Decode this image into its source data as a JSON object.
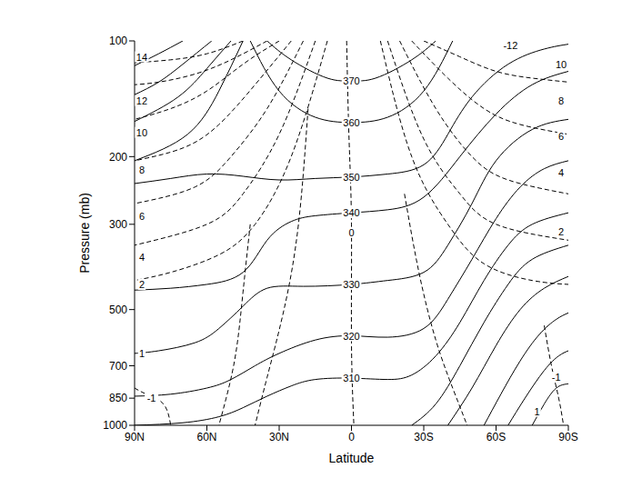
{
  "chart_data": {
    "type": "contour",
    "color": "#000000",
    "xlabel": "Latitude",
    "ylabel": "Pressure (mb)",
    "log": "y",
    "xlim": [
      90,
      -90
    ],
    "xticks": [
      {
        "value": 90,
        "label": "90N"
      },
      {
        "value": 60,
        "label": "60N"
      },
      {
        "value": 30,
        "label": "30N"
      },
      0,
      {
        "value": -30,
        "label": "30S"
      },
      {
        "value": -60,
        "label": "60S"
      },
      {
        "value": -90,
        "label": "90S"
      }
    ],
    "ylim": [
      1000,
      100
    ],
    "yticks": [
      100,
      200,
      300,
      500,
      700,
      850,
      1000
    ],
    "series": [
      {
        "line_style": "solid",
        "x": [
          35,
          25,
          10,
          0,
          -10,
          -25,
          -35
        ],
        "values": [
          100,
          112,
          125,
          127,
          125,
          112,
          100
        ]
      },
      {
        "line_style": "solid",
        "x": [
          42,
          30,
          15,
          0,
          -15,
          -30,
          -42
        ],
        "values": [
          100,
          135,
          158,
          163,
          158,
          135,
          100
        ]
      },
      {
        "line_style": "solid",
        "x": [
          90,
          75,
          60,
          45,
          30,
          15,
          0,
          -15,
          -30,
          -40,
          -50,
          -65,
          -80,
          -90
        ],
        "values": [
          235,
          228,
          222,
          225,
          230,
          228,
          226,
          222,
          210,
          175,
          140,
          115,
          105,
          102
        ]
      },
      {
        "line_style": "solid",
        "x": [
          90,
          75,
          60,
          45,
          35,
          25,
          15,
          0,
          -15,
          -30,
          -45,
          -60,
          -75,
          -90
        ],
        "values": [
          445,
          440,
          430,
          400,
          330,
          295,
          285,
          280,
          275,
          255,
          200,
          155,
          130,
          120
        ]
      },
      {
        "line_style": "solid",
        "x": [
          90,
          80,
          65,
          55,
          45,
          35,
          20,
          0,
          -15,
          -30,
          -40,
          -50,
          -60,
          -75,
          -90
        ],
        "values": [
          650,
          640,
          610,
          560,
          490,
          440,
          435,
          430,
          420,
          400,
          340,
          265,
          205,
          170,
          160
        ]
      },
      {
        "line_style": "solid",
        "x": [
          90,
          75,
          60,
          50,
          40,
          30,
          15,
          0,
          -15,
          -30,
          -40,
          -50,
          -60,
          -70,
          -80,
          -90
        ],
        "values": [
          840,
          830,
          800,
          760,
          700,
          650,
          600,
          585,
          590,
          560,
          470,
          370,
          290,
          240,
          215,
          205
        ]
      },
      {
        "line_style": "solid",
        "x": [
          90,
          70,
          55,
          45,
          35,
          25,
          15,
          0,
          -15,
          -25,
          -35,
          -45,
          -55,
          -65,
          -75,
          -90
        ],
        "values": [
          1000,
          985,
          950,
          900,
          840,
          790,
          760,
          754,
          760,
          740,
          660,
          540,
          420,
          340,
          300,
          280
        ]
      },
      {
        "line_style": "solid",
        "x": [
          -25,
          -35,
          -45,
          -55,
          -65,
          -75,
          -90
        ],
        "values": [
          1000,
          880,
          700,
          540,
          430,
          370,
          340
        ]
      },
      {
        "line_style": "solid",
        "x": [
          -40,
          -50,
          -60,
          -70,
          -80,
          -90
        ],
        "values": [
          1000,
          800,
          620,
          500,
          440,
          410
        ]
      },
      {
        "line_style": "solid",
        "x": [
          -55,
          -62,
          -70,
          -78,
          -85,
          -90
        ],
        "values": [
          1000,
          830,
          680,
          580,
          530,
          510
        ]
      },
      {
        "line_style": "solid",
        "x": [
          -65,
          -72,
          -80,
          -86,
          -90
        ],
        "values": [
          1000,
          850,
          720,
          660,
          640
        ]
      },
      {
        "line_style": "solid",
        "x": [
          -75,
          -80,
          -85,
          -90
        ],
        "values": [
          1000,
          880,
          800,
          780
        ]
      },
      {
        "line_style": "solid",
        "x": [
          70,
          80,
          90
        ],
        "values": [
          100,
          108,
          116
        ]
      },
      {
        "line_style": "solid",
        "x": [
          58,
          70,
          80,
          90
        ],
        "values": [
          100,
          115,
          128,
          138
        ]
      },
      {
        "line_style": "solid",
        "x": [
          50,
          60,
          72,
          90
        ],
        "values": [
          100,
          118,
          140,
          162
        ]
      },
      {
        "line_style": "solid",
        "x": [
          45,
          55,
          68,
          90
        ],
        "values": [
          100,
          135,
          175,
          205
        ]
      },
      {
        "line_style": "dashed",
        "x": [
          30,
          45,
          60,
          75,
          90
        ],
        "values": [
          100,
          115,
          135,
          150,
          160
        ]
      },
      {
        "line_style": "dashed",
        "x": [
          25,
          40,
          55,
          70,
          90
        ],
        "values": [
          100,
          130,
          165,
          190,
          205
        ]
      },
      {
        "line_style": "dashed",
        "x": [
          20,
          35,
          50,
          65,
          90
        ],
        "values": [
          100,
          150,
          200,
          240,
          265
        ]
      },
      {
        "line_style": "dashed",
        "x": [
          15,
          30,
          45,
          60,
          90
        ],
        "values": [
          100,
          175,
          250,
          300,
          340
        ]
      },
      {
        "line_style": "dashed",
        "x": [
          10,
          25,
          40,
          55,
          75,
          90
        ],
        "values": [
          100,
          200,
          300,
          360,
          400,
          420
        ]
      },
      {
        "line_style": "dashed",
        "x": [
          35,
          50,
          65,
          80,
          90
        ],
        "values": [
          100,
          112,
          122,
          128,
          130
        ]
      },
      {
        "line_style": "dashed",
        "x": [
          45,
          60,
          75,
          90
        ],
        "values": [
          100,
          108,
          112,
          114
        ]
      },
      {
        "line_style": "dashed",
        "x": [
          18,
          22,
          28,
          35,
          40
        ],
        "values": [
          150,
          300,
          500,
          750,
          1000
        ]
      },
      {
        "line_style": "dashed",
        "x": [
          42,
          45,
          48,
          52,
          55
        ],
        "values": [
          300,
          450,
          650,
          850,
          1000
        ]
      },
      {
        "line_style": "dashed",
        "x": [
          2,
          1,
          0,
          0,
          -1
        ],
        "values": [
          100,
          180,
          300,
          600,
          1000
        ]
      },
      {
        "line_style": "dashed",
        "x": [
          90,
          85,
          78,
          75
        ],
        "values": [
          800,
          830,
          880,
          1000
        ]
      },
      {
        "line_style": "dashed",
        "x": [
          -25,
          -40,
          -55,
          -70,
          -90
        ],
        "values": [
          100,
          125,
          150,
          165,
          175
        ]
      },
      {
        "line_style": "dashed",
        "x": [
          -20,
          -35,
          -50,
          -65,
          -90
        ],
        "values": [
          100,
          150,
          200,
          230,
          250
        ]
      },
      {
        "line_style": "dashed",
        "x": [
          -15,
          -30,
          -45,
          -60,
          -90
        ],
        "values": [
          100,
          180,
          250,
          300,
          330
        ]
      },
      {
        "line_style": "dashed",
        "x": [
          -12,
          -25,
          -40,
          -55,
          -75,
          -90
        ],
        "values": [
          100,
          200,
          300,
          380,
          420,
          430
        ]
      },
      {
        "line_style": "dashed",
        "x": [
          -30,
          -45,
          -60,
          -75,
          -90
        ],
        "values": [
          100,
          110,
          120,
          125,
          128
        ]
      },
      {
        "line_style": "dashed",
        "x": [
          -22,
          -28,
          -35,
          -42,
          -48
        ],
        "values": [
          250,
          400,
          600,
          800,
          1000
        ]
      },
      {
        "line_style": "dashed",
        "x": [
          -80,
          -83,
          -86,
          -88
        ],
        "values": [
          550,
          700,
          850,
          1000
        ]
      }
    ],
    "annotations": [
      {
        "text": "370",
        "x": 0,
        "y": 127
      },
      {
        "text": "360",
        "x": 0,
        "y": 163
      },
      {
        "text": "350",
        "x": 0,
        "y": 226
      },
      {
        "text": "340",
        "x": 0,
        "y": 280
      },
      {
        "text": "0",
        "x": 0,
        "y": 315
      },
      {
        "text": "330",
        "x": 0,
        "y": 430
      },
      {
        "text": "320",
        "x": 0,
        "y": 585
      },
      {
        "text": "310",
        "x": 0,
        "y": 754
      },
      {
        "text": "14",
        "x": 87,
        "y": 110
      },
      {
        "text": "12",
        "x": 87,
        "y": 143
      },
      {
        "text": "10",
        "x": 87,
        "y": 173
      },
      {
        "text": "8",
        "x": 87,
        "y": 217
      },
      {
        "text": "6",
        "x": 87,
        "y": 286
      },
      {
        "text": "4",
        "x": 87,
        "y": 365
      },
      {
        "text": "2",
        "x": 87,
        "y": 430
      },
      {
        "text": "1",
        "x": 87,
        "y": 650
      },
      {
        "text": "-1",
        "x": 83,
        "y": 850
      },
      {
        "text": "-12",
        "x": -66,
        "y": 103
      },
      {
        "text": "10",
        "x": -87,
        "y": 115
      },
      {
        "text": "8",
        "x": -87,
        "y": 143
      },
      {
        "text": "6",
        "x": -87,
        "y": 177
      },
      {
        "text": "4",
        "x": -87,
        "y": 220
      },
      {
        "text": "2",
        "x": -87,
        "y": 314
      },
      {
        "text": "-1",
        "x": -85,
        "y": 750
      },
      {
        "text": "1",
        "x": -77,
        "y": 920
      }
    ]
  }
}
